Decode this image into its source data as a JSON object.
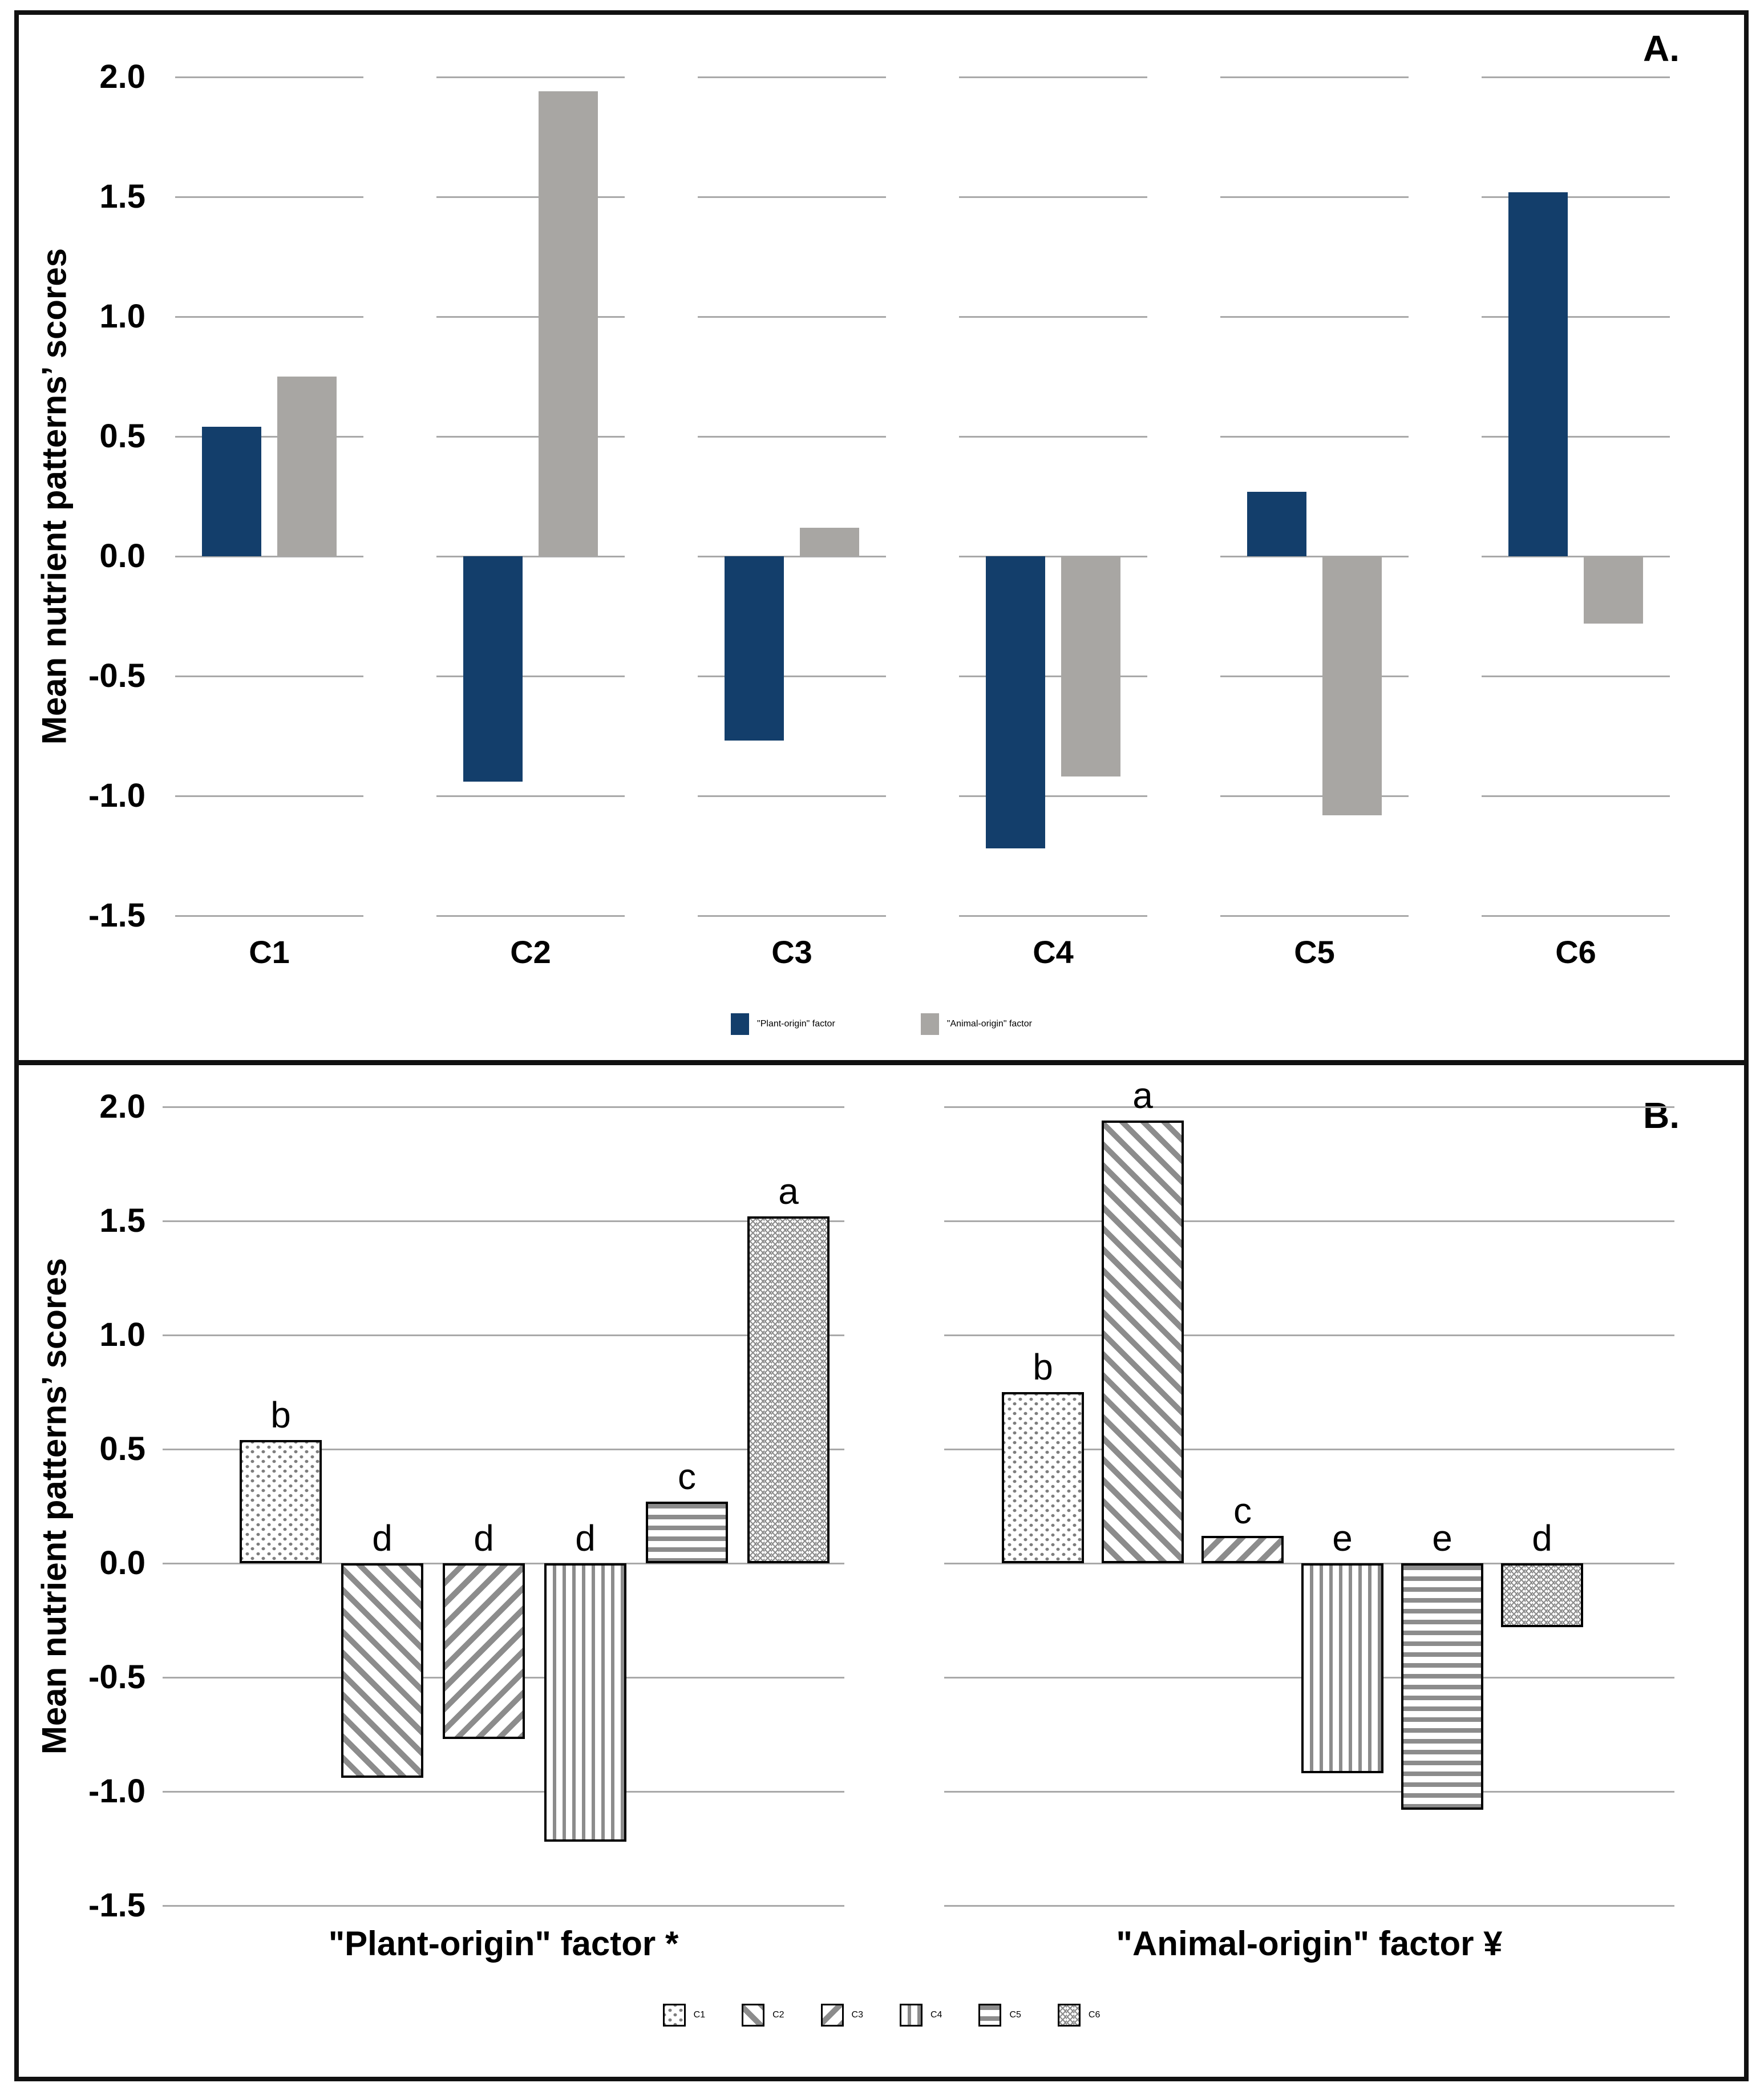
{
  "panel_a": {
    "label": "A.",
    "y_axis_title": "Mean nutrient patterns’ scores"
  },
  "panel_b": {
    "label": "B.",
    "y_axis_title": "Mean nutrient patterns’ scores"
  },
  "colors": {
    "plant_navy": "#133e6b",
    "animal_gray": "#a8a6a3",
    "gridline": "#a9a9a9",
    "pattern_stroke": "#8c8c8c"
  },
  "chart_data": [
    {
      "type": "bar",
      "panel": "A",
      "title": "",
      "xlabel": "",
      "ylabel": "Mean nutrient patterns’ scores",
      "ylim": [
        -1.5,
        2.0
      ],
      "gridline_step": 0.5,
      "grid": true,
      "legend_position": "bottom",
      "y_ticks": [
        "2.0",
        "1.5",
        "1.0",
        "0.5",
        "0.0",
        "-0.5",
        "-1.0",
        "-1.5"
      ],
      "categories": [
        "C1",
        "C2",
        "C3",
        "C4",
        "C5",
        "C6"
      ],
      "series": [
        {
          "name": "\"Plant-origin\" factor",
          "color": "#133e6b",
          "values": [
            0.54,
            -0.94,
            -0.77,
            -1.22,
            0.27,
            1.52
          ]
        },
        {
          "name": "\"Animal-origin\" factor",
          "color": "#a8a6a3",
          "values": [
            0.75,
            1.94,
            0.12,
            -0.92,
            -1.08,
            -0.28
          ]
        }
      ]
    },
    {
      "type": "bar",
      "panel": "B",
      "title": "",
      "xlabel": "",
      "ylabel": "Mean nutrient patterns’ scores",
      "ylim": [
        -1.5,
        2.0
      ],
      "gridline_step": 0.5,
      "grid": true,
      "legend_position": "bottom",
      "y_ticks": [
        "2.0",
        "1.5",
        "1.0",
        "0.5",
        "0.0",
        "-0.5",
        "-1.0",
        "-1.5"
      ],
      "categories": [
        "C1",
        "C2",
        "C3",
        "C4",
        "C5",
        "C6"
      ],
      "category_patterns": [
        "dotted",
        "diagonal-down",
        "diagonal-up",
        "vertical-stripes",
        "horizontal-stripes",
        "zigzag"
      ],
      "groups": [
        {
          "label": "\"Plant-origin\" factor *",
          "values": [
            0.54,
            -0.94,
            -0.77,
            -1.22,
            0.27,
            1.52
          ],
          "letters": [
            "b",
            "d",
            "d",
            "d",
            "c",
            "a"
          ]
        },
        {
          "label": "\"Animal-origin\" factor ¥",
          "values": [
            0.75,
            1.94,
            0.12,
            -0.92,
            -1.08,
            -0.28
          ],
          "letters": [
            "b",
            "a",
            "c",
            "e",
            "e",
            "d"
          ]
        }
      ]
    }
  ]
}
